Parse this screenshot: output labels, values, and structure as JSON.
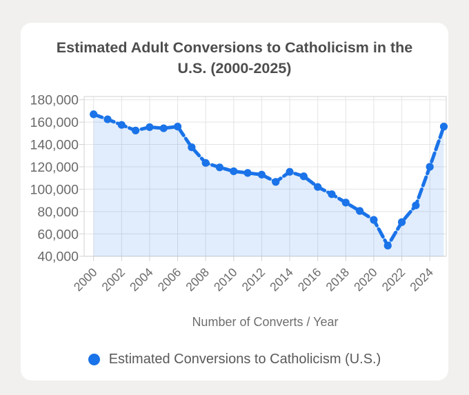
{
  "card": {
    "title": "Estimated Adult Conversions to Catholicism in the U.S. (2000-2025)"
  },
  "chart_data": {
    "type": "line",
    "title": "Estimated Adult Conversions to Catholicism in the U.S. (2000-2025)",
    "x": [
      2000,
      2001,
      2002,
      2003,
      2004,
      2005,
      2006,
      2007,
      2008,
      2009,
      2010,
      2011,
      2012,
      2013,
      2014,
      2015,
      2016,
      2017,
      2018,
      2019,
      2020,
      2021,
      2022,
      2023,
      2024,
      2025
    ],
    "series": [
      {
        "name": "Estimated Conversions to Catholicism (U.S.)",
        "values": [
          167000,
          162500,
          157500,
          152500,
          155500,
          154500,
          156000,
          137500,
          123500,
          119500,
          116000,
          114500,
          113000,
          106500,
          115500,
          111500,
          102000,
          95500,
          88000,
          80500,
          72500,
          49500,
          70500,
          85500,
          120000,
          156000
        ]
      }
    ],
    "xlabel": "Number of Converts / Year",
    "ylabel": "",
    "ylim": [
      40000,
      180000
    ],
    "yticks": [
      40000,
      60000,
      80000,
      100000,
      120000,
      140000,
      160000,
      180000
    ],
    "xticks": [
      2000,
      2002,
      2004,
      2006,
      2008,
      2010,
      2012,
      2014,
      2016,
      2018,
      2020,
      2022,
      2024
    ],
    "grid": true,
    "line_style": "dashed",
    "marker": "filled-circle",
    "legend_position": "bottom",
    "colors": {
      "line": "#1a73e8",
      "fill": "rgba(26,115,232,0.13)",
      "grid": "#e4e4e4",
      "border": "#d2d2d2",
      "tick_label": "#6a6a6a"
    }
  },
  "legend": {
    "label": "Estimated Conversions to Catholicism (U.S.)"
  },
  "axis_title": "Number of Converts / Year"
}
